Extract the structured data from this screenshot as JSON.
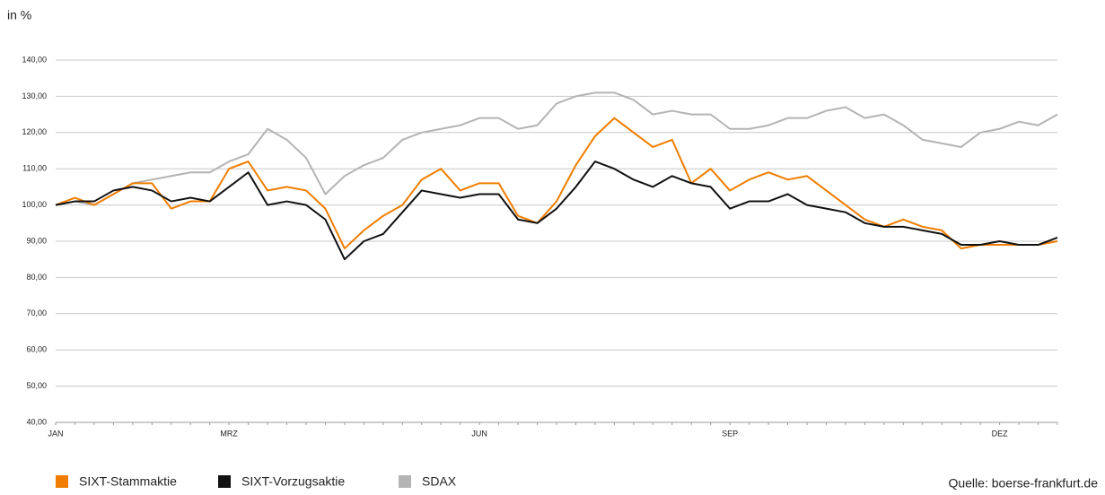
{
  "chart_data": {
    "type": "line",
    "y_axis_label": "in %",
    "source": "Quelle: boerse-frankfurt.de",
    "categories": [
      "JAN",
      null,
      null,
      null,
      null,
      null,
      null,
      null,
      null,
      "MRZ",
      null,
      null,
      null,
      null,
      null,
      null,
      null,
      null,
      null,
      null,
      null,
      null,
      "JUN",
      null,
      null,
      null,
      null,
      null,
      null,
      null,
      null,
      null,
      null,
      null,
      null,
      "SEP",
      null,
      null,
      null,
      null,
      null,
      null,
      null,
      null,
      null,
      null,
      null,
      null,
      null,
      "DEZ",
      null,
      null,
      null
    ],
    "series": [
      {
        "name": "SIXT-Stammaktie",
        "color": "#f07d00",
        "values": [
          100,
          102,
          100,
          103,
          106,
          106,
          99,
          101,
          101,
          110,
          112,
          104,
          105,
          104,
          99,
          88,
          93,
          97,
          100,
          107,
          110,
          104,
          106,
          106,
          97,
          95,
          101,
          111,
          119,
          124,
          120,
          116,
          118,
          106,
          110,
          104,
          107,
          109,
          107,
          108,
          104,
          100,
          96,
          94,
          96,
          94,
          93,
          88,
          89,
          89,
          89,
          89,
          90
        ]
      },
      {
        "name": "SIXT-Vorzugsaktie",
        "color": "#111111",
        "values": [
          100,
          101,
          101,
          104,
          105,
          104,
          101,
          102,
          101,
          105,
          109,
          100,
          101,
          100,
          96,
          85,
          90,
          92,
          98,
          104,
          103,
          102,
          103,
          103,
          96,
          95,
          99,
          105,
          112,
          110,
          107,
          105,
          108,
          106,
          105,
          99,
          101,
          101,
          103,
          100,
          99,
          98,
          95,
          94,
          94,
          93,
          92,
          89,
          89,
          90,
          89,
          89,
          91
        ]
      },
      {
        "name": "SDAX",
        "color": "#b4b4b4",
        "values": [
          100,
          101,
          100,
          103,
          106,
          107,
          108,
          109,
          109,
          112,
          114,
          121,
          118,
          113,
          103,
          108,
          111,
          113,
          118,
          120,
          121,
          122,
          124,
          124,
          121,
          122,
          128,
          130,
          131,
          131,
          129,
          125,
          126,
          125,
          125,
          121,
          121,
          122,
          124,
          124,
          126,
          127,
          124,
          125,
          122,
          118,
          117,
          116,
          120,
          121,
          123,
          122,
          125
        ]
      }
    ],
    "ylim": [
      40,
      140
    ],
    "yticks": [
      {
        "value": 40,
        "label": "40,00"
      },
      {
        "value": 50,
        "label": "50,00"
      },
      {
        "value": 60,
        "label": "60,00"
      },
      {
        "value": 70,
        "label": "70,00"
      },
      {
        "value": 80,
        "label": "80,00"
      },
      {
        "value": 90,
        "label": "90,00"
      },
      {
        "value": 100,
        "label": "100,00"
      },
      {
        "value": 110,
        "label": "110,00"
      },
      {
        "value": 120,
        "label": "120,00"
      },
      {
        "value": 130,
        "label": "130,00"
      },
      {
        "value": 140,
        "label": "140,00"
      }
    ],
    "grid": true
  }
}
